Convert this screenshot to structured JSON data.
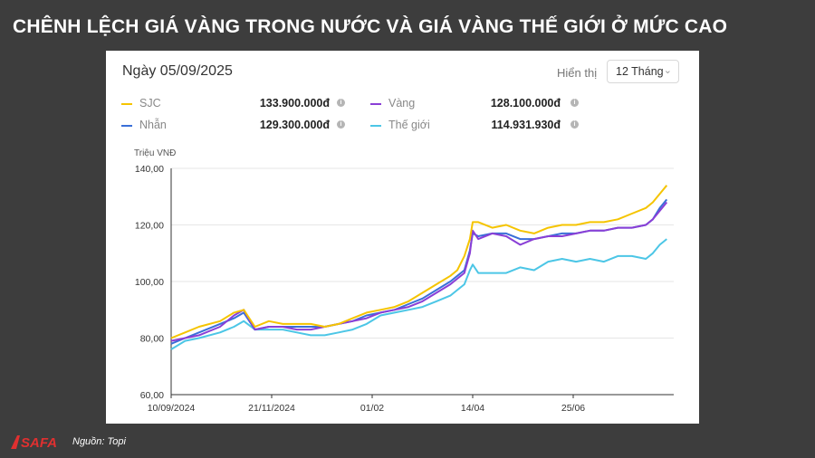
{
  "headline": "CHÊNH LỆCH GIÁ VÀNG TRONG NƯỚC VÀ GIÁ VÀNG THẾ GIỚI Ở MỨC CAO",
  "header": {
    "date": "Ngày 05/09/2025",
    "show_label": "Hiển thị",
    "period": "12 Tháng"
  },
  "legend": [
    {
      "label": "SJC",
      "value": "133.900.000đ",
      "color": "#f5c400"
    },
    {
      "label": "Vàng",
      "value": "128.100.000đ",
      "color": "#8a3fd6"
    },
    {
      "label": "Nhẫn",
      "value": "129.300.000đ",
      "color": "#3a6fd8"
    },
    {
      "label": "Thế giới",
      "value": "114.931.930đ",
      "color": "#4cc6e6"
    }
  ],
  "chart_data": {
    "type": "line",
    "ylabel": "Triệu VNĐ",
    "ylim": [
      60,
      140
    ],
    "y_ticks": [
      "140,00",
      "120,00",
      "100,00",
      "80,00",
      "60,00"
    ],
    "x_ticks": [
      {
        "label": "10/09/2024",
        "day": 0
      },
      {
        "label": "21/11/2024",
        "day": 72
      },
      {
        "label": "01/02",
        "day": 144
      },
      {
        "label": "14/04",
        "day": 216
      },
      {
        "label": "25/06",
        "day": 288
      }
    ],
    "x_max_day": 360,
    "series": [
      {
        "name": "SJC",
        "color": "#f5c400",
        "points": [
          [
            0,
            80
          ],
          [
            10,
            82
          ],
          [
            20,
            84
          ],
          [
            35,
            86
          ],
          [
            45,
            89
          ],
          [
            52,
            90
          ],
          [
            60,
            84
          ],
          [
            70,
            86
          ],
          [
            80,
            85
          ],
          [
            90,
            85
          ],
          [
            100,
            85
          ],
          [
            110,
            84
          ],
          [
            120,
            85
          ],
          [
            130,
            87
          ],
          [
            140,
            89
          ],
          [
            150,
            90
          ],
          [
            160,
            91
          ],
          [
            170,
            93
          ],
          [
            180,
            96
          ],
          [
            190,
            99
          ],
          [
            200,
            102
          ],
          [
            205,
            104
          ],
          [
            210,
            109
          ],
          [
            214,
            115
          ],
          [
            216,
            121
          ],
          [
            220,
            121
          ],
          [
            230,
            119
          ],
          [
            240,
            120
          ],
          [
            250,
            118
          ],
          [
            260,
            117
          ],
          [
            270,
            119
          ],
          [
            280,
            120
          ],
          [
            290,
            120
          ],
          [
            300,
            121
          ],
          [
            310,
            121
          ],
          [
            320,
            122
          ],
          [
            330,
            124
          ],
          [
            340,
            126
          ],
          [
            345,
            128
          ],
          [
            350,
            131
          ],
          [
            355,
            134
          ]
        ]
      },
      {
        "name": "Vàng",
        "color": "#8a3fd6",
        "points": [
          [
            0,
            79
          ],
          [
            10,
            80
          ],
          [
            20,
            81
          ],
          [
            35,
            84
          ],
          [
            45,
            88
          ],
          [
            52,
            90
          ],
          [
            60,
            83
          ],
          [
            70,
            84
          ],
          [
            80,
            84
          ],
          [
            90,
            83
          ],
          [
            100,
            83
          ],
          [
            110,
            84
          ],
          [
            120,
            85
          ],
          [
            130,
            86
          ],
          [
            140,
            87
          ],
          [
            150,
            89
          ],
          [
            160,
            90
          ],
          [
            170,
            91
          ],
          [
            180,
            93
          ],
          [
            190,
            96
          ],
          [
            200,
            99
          ],
          [
            205,
            101
          ],
          [
            210,
            103
          ],
          [
            214,
            110
          ],
          [
            216,
            118
          ],
          [
            220,
            115
          ],
          [
            230,
            117
          ],
          [
            240,
            116
          ],
          [
            250,
            113
          ],
          [
            260,
            115
          ],
          [
            270,
            116
          ],
          [
            280,
            116
          ],
          [
            290,
            117
          ],
          [
            300,
            118
          ],
          [
            310,
            118
          ],
          [
            320,
            119
          ],
          [
            330,
            119
          ],
          [
            340,
            120
          ],
          [
            345,
            122
          ],
          [
            350,
            125
          ],
          [
            355,
            128
          ]
        ]
      },
      {
        "name": "Nhẫn",
        "color": "#3a6fd8",
        "points": [
          [
            0,
            78
          ],
          [
            10,
            80
          ],
          [
            20,
            82
          ],
          [
            35,
            85
          ],
          [
            45,
            87
          ],
          [
            52,
            89
          ],
          [
            60,
            83
          ],
          [
            70,
            84
          ],
          [
            80,
            84
          ],
          [
            90,
            84
          ],
          [
            100,
            84
          ],
          [
            110,
            84
          ],
          [
            120,
            85
          ],
          [
            130,
            86
          ],
          [
            140,
            88
          ],
          [
            150,
            89
          ],
          [
            160,
            90
          ],
          [
            170,
            92
          ],
          [
            180,
            94
          ],
          [
            190,
            97
          ],
          [
            200,
            100
          ],
          [
            205,
            102
          ],
          [
            210,
            104
          ],
          [
            214,
            111
          ],
          [
            216,
            117
          ],
          [
            220,
            116
          ],
          [
            230,
            117
          ],
          [
            240,
            117
          ],
          [
            250,
            115
          ],
          [
            260,
            115
          ],
          [
            270,
            116
          ],
          [
            280,
            117
          ],
          [
            290,
            117
          ],
          [
            300,
            118
          ],
          [
            310,
            118
          ],
          [
            320,
            119
          ],
          [
            330,
            119
          ],
          [
            340,
            120
          ],
          [
            345,
            122
          ],
          [
            350,
            126
          ],
          [
            355,
            129
          ]
        ]
      },
      {
        "name": "Thế giới",
        "color": "#4cc6e6",
        "points": [
          [
            0,
            76
          ],
          [
            10,
            79
          ],
          [
            20,
            80
          ],
          [
            35,
            82
          ],
          [
            45,
            84
          ],
          [
            52,
            86
          ],
          [
            60,
            83
          ],
          [
            70,
            83
          ],
          [
            80,
            83
          ],
          [
            90,
            82
          ],
          [
            100,
            81
          ],
          [
            110,
            81
          ],
          [
            120,
            82
          ],
          [
            130,
            83
          ],
          [
            140,
            85
          ],
          [
            150,
            88
          ],
          [
            160,
            89
          ],
          [
            170,
            90
          ],
          [
            180,
            91
          ],
          [
            190,
            93
          ],
          [
            200,
            95
          ],
          [
            205,
            97
          ],
          [
            210,
            99
          ],
          [
            214,
            104
          ],
          [
            216,
            106
          ],
          [
            220,
            103
          ],
          [
            230,
            103
          ],
          [
            240,
            103
          ],
          [
            250,
            105
          ],
          [
            260,
            104
          ],
          [
            270,
            107
          ],
          [
            280,
            108
          ],
          [
            290,
            107
          ],
          [
            300,
            108
          ],
          [
            310,
            107
          ],
          [
            320,
            109
          ],
          [
            330,
            109
          ],
          [
            340,
            108
          ],
          [
            345,
            110
          ],
          [
            350,
            113
          ],
          [
            355,
            115
          ]
        ]
      }
    ]
  },
  "footer": {
    "logo_text": "SAFA",
    "source": "Nguồn: Topi"
  }
}
